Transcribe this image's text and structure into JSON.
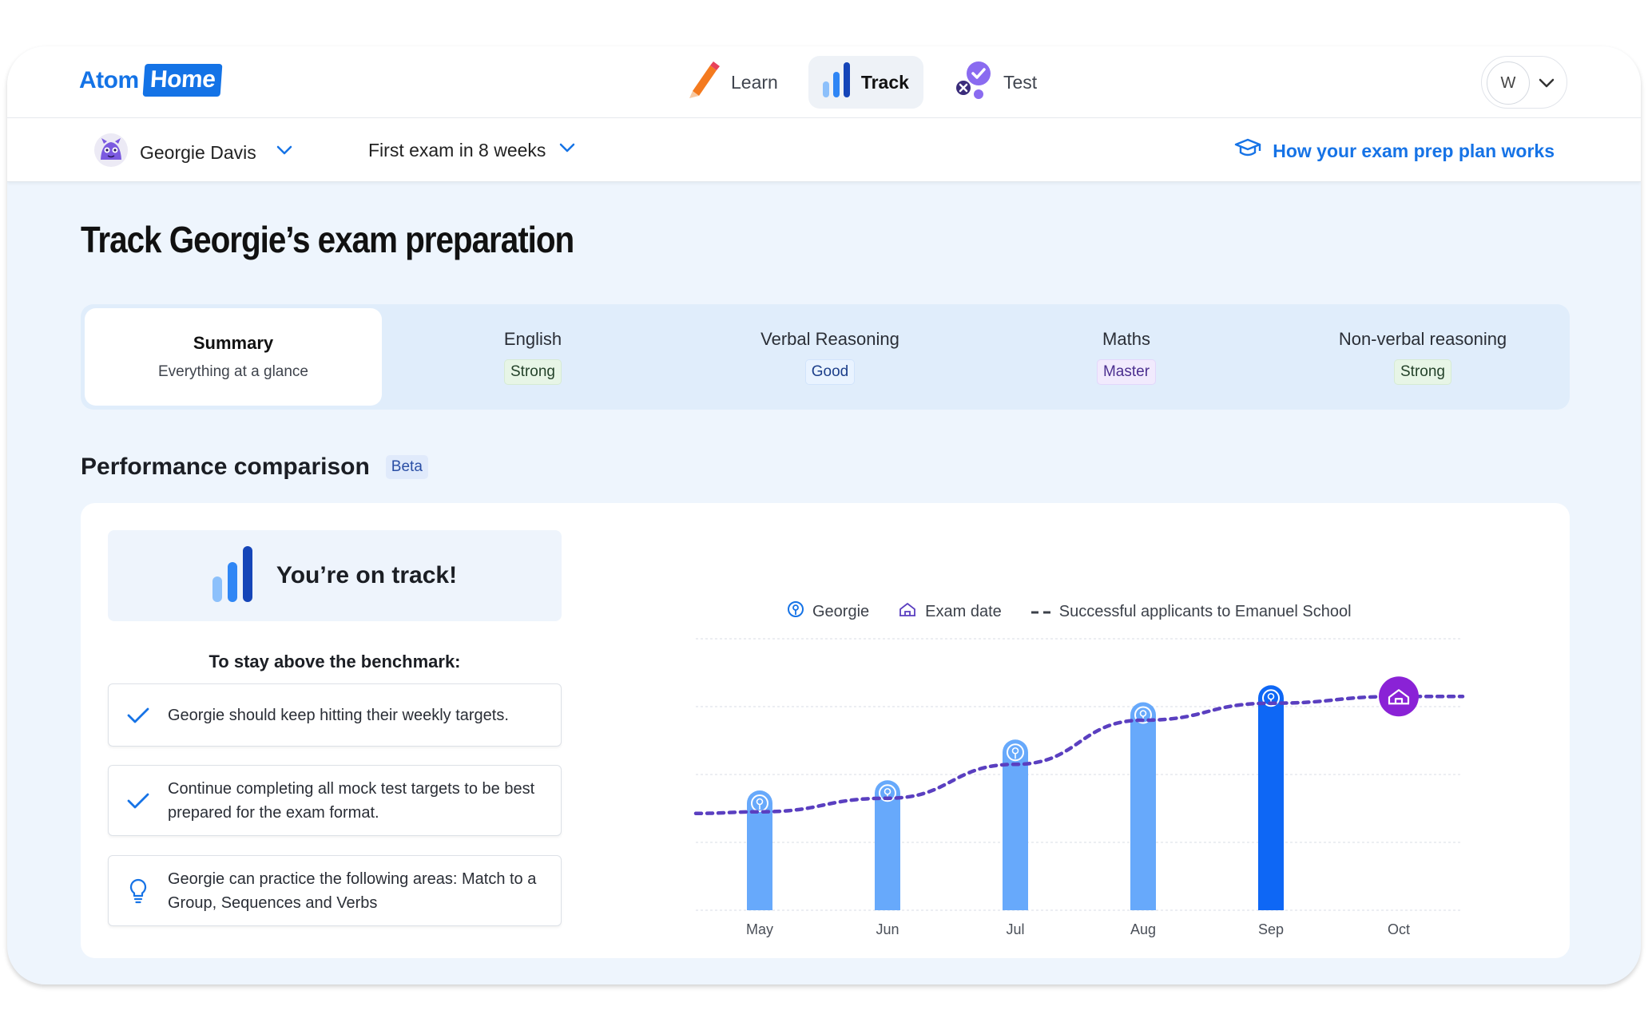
{
  "brand": {
    "part1": "Atom",
    "part2": "Home"
  },
  "nav": [
    {
      "label": "Learn",
      "icon": "pencil-icon",
      "active": false
    },
    {
      "label": "Track",
      "icon": "bar-chart-icon",
      "active": true
    },
    {
      "label": "Test",
      "icon": "test-check-icon",
      "active": false
    }
  ],
  "user": {
    "initial": "W"
  },
  "subbar": {
    "student": "Georgie Davis",
    "exam": "First exam in 8 weeks",
    "how_link": "How your exam prep plan works"
  },
  "page_title": "Track Georgie’s exam preparation",
  "tabs": [
    {
      "title": "Summary",
      "sub": "Everything at a glance"
    },
    {
      "title": "English",
      "badge": "Strong"
    },
    {
      "title": "Verbal Reasoning",
      "badge": "Good"
    },
    {
      "title": "Maths",
      "badge": "Master"
    },
    {
      "title": "Non-verbal reasoning",
      "badge": "Strong"
    }
  ],
  "performance": {
    "title": "Performance comparison",
    "badge": "Beta",
    "status": "You’re on track!",
    "benchmark_heading": "To stay above the benchmark:",
    "tips": [
      "Georgie should keep hitting their weekly targets.",
      "Continue completing all mock test targets to be best prepared for the exam format.",
      "Georgie can practice the following areas: Match to a Group, Sequences and Verbs"
    ]
  },
  "colors": {
    "accent": "#1473e6",
    "bar": "#67a9fb",
    "bar_current": "#0e67f5",
    "benchmark": "#5a3fc0",
    "exam": "#8a22d6"
  },
  "chart_data": {
    "type": "bar",
    "categories": [
      "May",
      "Jun",
      "Jul",
      "Aug",
      "Sep",
      "Oct"
    ],
    "series": [
      {
        "name": "Georgie",
        "values": [
          32,
          35,
          47,
          58,
          63,
          null
        ]
      },
      {
        "name": "Successful applicants to Emanuel School",
        "type": "line",
        "values": [
          29,
          33,
          43,
          56,
          61,
          63
        ]
      }
    ],
    "legend": [
      "Georgie",
      "Exam date",
      "Successful applicants to Emanuel School"
    ],
    "exam_date": "Oct",
    "current": "Sep",
    "ylim": [
      0,
      80
    ],
    "grid": true
  }
}
